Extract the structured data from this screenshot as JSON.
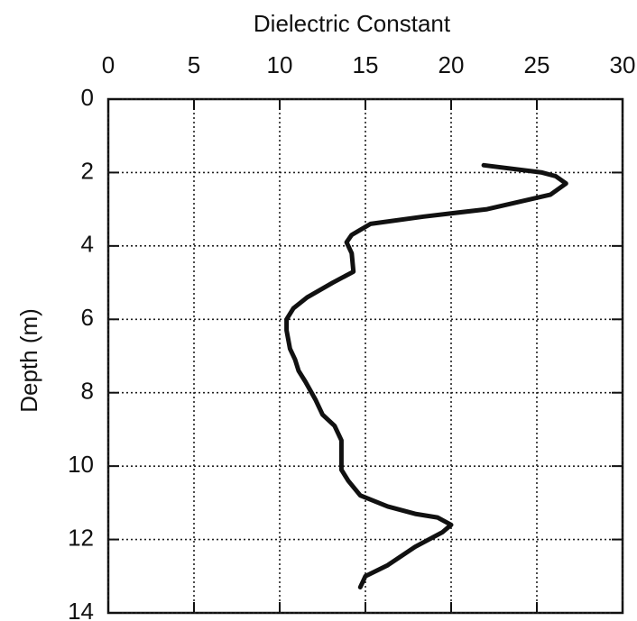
{
  "chart_data": {
    "type": "line",
    "x_label": "Dielectric Constant",
    "y_label": "Depth (m)",
    "x": [
      21.9,
      25.3,
      26.1,
      26.7,
      25.8,
      22.1,
      18.4,
      15.3,
      14.2,
      13.9,
      14.2,
      14.3,
      13.1,
      11.6,
      10.8,
      10.4,
      10.4,
      10.6,
      10.9,
      11.1,
      11.5,
      12.1,
      12.5,
      13.2,
      13.6,
      13.6,
      14.0,
      14.7,
      16.3,
      17.9,
      19.2,
      20.0,
      19.5,
      17.9,
      16.3,
      15.0,
      14.7
    ],
    "values": [
      1.8,
      2.0,
      2.1,
      2.3,
      2.6,
      3.0,
      3.2,
      3.4,
      3.7,
      3.9,
      4.2,
      4.7,
      5.0,
      5.4,
      5.7,
      6.0,
      6.3,
      6.8,
      7.1,
      7.4,
      7.7,
      8.2,
      8.6,
      8.9,
      9.3,
      10.1,
      10.4,
      10.8,
      11.1,
      11.3,
      11.4,
      11.6,
      11.8,
      12.2,
      12.7,
      13.0,
      13.3
    ],
    "color": "#111111",
    "xlim": [
      0,
      30
    ],
    "xticks": [
      0,
      5,
      10,
      15,
      20,
      25,
      30
    ],
    "ylim": [
      0,
      14
    ],
    "yticks": [
      0,
      2,
      4,
      6,
      8,
      10,
      12,
      14
    ],
    "y_inverted": true,
    "x_axis_position": "top",
    "grid": true
  }
}
